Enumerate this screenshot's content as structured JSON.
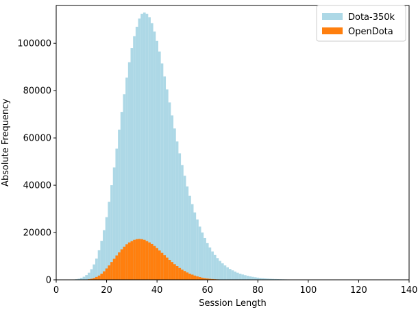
{
  "chart_data": {
    "type": "bar",
    "subtype": "histogram",
    "xlabel": "Session Length",
    "ylabel": "Absolute Frequency",
    "xlim": [
      0,
      140
    ],
    "ylim": [
      0,
      116000
    ],
    "xticks": [
      0,
      20,
      40,
      60,
      80,
      100,
      120,
      140
    ],
    "yticks": [
      0,
      20000,
      40000,
      60000,
      80000,
      100000
    ],
    "grid": false,
    "legend_position": "top-right",
    "bin_width": 1,
    "series": [
      {
        "name": "Dota-350k",
        "color": "#add8e6",
        "x": [
          7,
          8,
          9,
          10,
          11,
          12,
          13,
          14,
          15,
          16,
          17,
          18,
          19,
          20,
          21,
          22,
          23,
          24,
          25,
          26,
          27,
          28,
          29,
          30,
          31,
          32,
          33,
          34,
          35,
          36,
          37,
          38,
          39,
          40,
          41,
          42,
          43,
          44,
          45,
          46,
          47,
          48,
          49,
          50,
          51,
          52,
          53,
          54,
          55,
          56,
          57,
          58,
          59,
          60,
          61,
          62,
          63,
          64,
          65,
          66,
          67,
          68,
          69,
          70,
          71,
          72,
          73,
          74,
          75,
          76,
          77,
          78,
          79,
          80,
          81,
          82,
          83,
          84,
          85,
          86,
          87,
          88,
          89,
          90,
          91,
          92,
          93,
          94,
          95,
          96,
          97,
          98,
          99,
          100,
          101,
          102,
          103,
          104,
          105,
          106,
          107,
          108,
          109,
          110,
          111,
          112,
          113,
          114,
          115,
          116,
          117,
          118,
          119,
          120,
          121,
          122,
          123,
          124,
          125,
          126,
          127,
          128,
          129,
          130,
          131,
          132,
          133,
          134,
          135
        ],
        "values": [
          150,
          250,
          450,
          800,
          1300,
          2000,
          3000,
          4500,
          6500,
          9000,
          12500,
          16500,
          21000,
          26500,
          33000,
          40000,
          47500,
          55500,
          63500,
          71000,
          78500,
          85500,
          92000,
          98000,
          103000,
          107000,
          110500,
          112500,
          113000,
          112500,
          111000,
          108500,
          105000,
          101000,
          96500,
          91500,
          86000,
          80500,
          75000,
          69500,
          64000,
          58500,
          53500,
          48500,
          44000,
          39500,
          35500,
          32000,
          28500,
          25500,
          22500,
          20000,
          17700,
          15600,
          13700,
          12000,
          10500,
          9200,
          8000,
          7000,
          6100,
          5300,
          4600,
          4000,
          3500,
          3000,
          2600,
          2250,
          1950,
          1700,
          1450,
          1250,
          1080,
          930,
          800,
          690,
          590,
          510,
          440,
          380,
          330,
          285,
          245,
          210,
          180,
          155,
          135,
          115,
          100,
          85,
          74,
          64,
          55,
          47,
          40,
          35,
          30,
          26,
          22,
          19,
          16,
          14,
          12,
          10,
          9,
          8,
          7,
          6,
          5,
          5,
          4,
          4,
          3,
          3,
          3,
          2,
          2,
          2,
          2,
          1,
          1,
          1,
          1,
          1,
          1,
          1,
          1,
          1,
          1
        ]
      },
      {
        "name": "OpenDota",
        "color": "#ff7f0e",
        "x": [
          11,
          12,
          13,
          14,
          15,
          16,
          17,
          18,
          19,
          20,
          21,
          22,
          23,
          24,
          25,
          26,
          27,
          28,
          29,
          30,
          31,
          32,
          33,
          34,
          35,
          36,
          37,
          38,
          39,
          40,
          41,
          42,
          43,
          44,
          45,
          46,
          47,
          48,
          49,
          50,
          51,
          52,
          53,
          54,
          55,
          56,
          57,
          58,
          59,
          60,
          61,
          62,
          63,
          64,
          65,
          66,
          67,
          68,
          69,
          70,
          71,
          72
        ],
        "values": [
          50,
          120,
          250,
          450,
          750,
          1200,
          1800,
          2600,
          3600,
          4800,
          6100,
          7500,
          8900,
          10300,
          11600,
          12900,
          14000,
          15000,
          15800,
          16400,
          16900,
          17200,
          17300,
          17200,
          16900,
          16400,
          15800,
          15100,
          14300,
          13400,
          12400,
          11400,
          10400,
          9400,
          8400,
          7500,
          6600,
          5800,
          5000,
          4300,
          3700,
          3100,
          2600,
          2200,
          1800,
          1450,
          1150,
          900,
          700,
          550,
          420,
          320,
          240,
          180,
          130,
          95,
          70,
          50,
          35,
          25,
          15,
          10
        ]
      }
    ]
  }
}
